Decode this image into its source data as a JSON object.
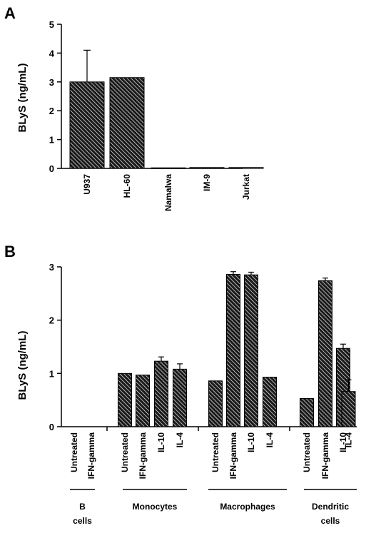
{
  "panels": {
    "a_label": "A",
    "b_label": "B"
  },
  "colors": {
    "bar_fill": "#1a1a1a",
    "hatch_line": "#ffffff",
    "axis": "#000000"
  },
  "chart_data": [
    {
      "type": "bar",
      "ylabel": "BLyS  (ng/mL)",
      "ylim": [
        0,
        5
      ],
      "yticks": [
        0,
        1,
        2,
        3,
        4,
        5
      ],
      "categories": [
        "U937",
        "HL-60",
        "Namalwa",
        "IM-9",
        "Jurkat"
      ],
      "values": [
        3.0,
        3.15,
        0.02,
        0.03,
        0.03
      ],
      "errors": [
        1.1,
        0,
        0,
        0,
        0
      ]
    },
    {
      "type": "bar",
      "ylabel": "BLyS  (ng/mL)",
      "ylim": [
        0,
        3
      ],
      "yticks": [
        0,
        1,
        2,
        3
      ],
      "groups": [
        {
          "name_lines": [
            "B",
            "cells"
          ],
          "categories": [
            "Untreated",
            "IFN-gamma"
          ],
          "values": [
            0.0,
            0.0
          ],
          "errors": [
            0,
            0
          ]
        },
        {
          "name_lines": [
            "Monocytes"
          ],
          "categories": [
            "Untreated",
            "IFN-gamma",
            "IL-10",
            "IL-4"
          ],
          "values": [
            1.0,
            0.97,
            1.23,
            1.08
          ],
          "errors": [
            0,
            0,
            0.08,
            0.1
          ]
        },
        {
          "name_lines": [
            "Macrophages"
          ],
          "categories": [
            "Untreated",
            "IFN-gamma",
            "IL-10",
            "IL-4"
          ],
          "values": [
            0.86,
            2.86,
            2.85,
            0.93
          ],
          "errors": [
            0,
            0.05,
            0.05,
            0
          ]
        },
        {
          "name_lines": [
            "Dendritic",
            "cells"
          ],
          "categories": [
            "Untreated",
            "IFN-gamma",
            "IL-10",
            "IL-4"
          ],
          "values": [
            0.53,
            2.74,
            1.47,
            0.66
          ],
          "errors": [
            0,
            0.05,
            0.08,
            0.22
          ]
        }
      ]
    }
  ]
}
